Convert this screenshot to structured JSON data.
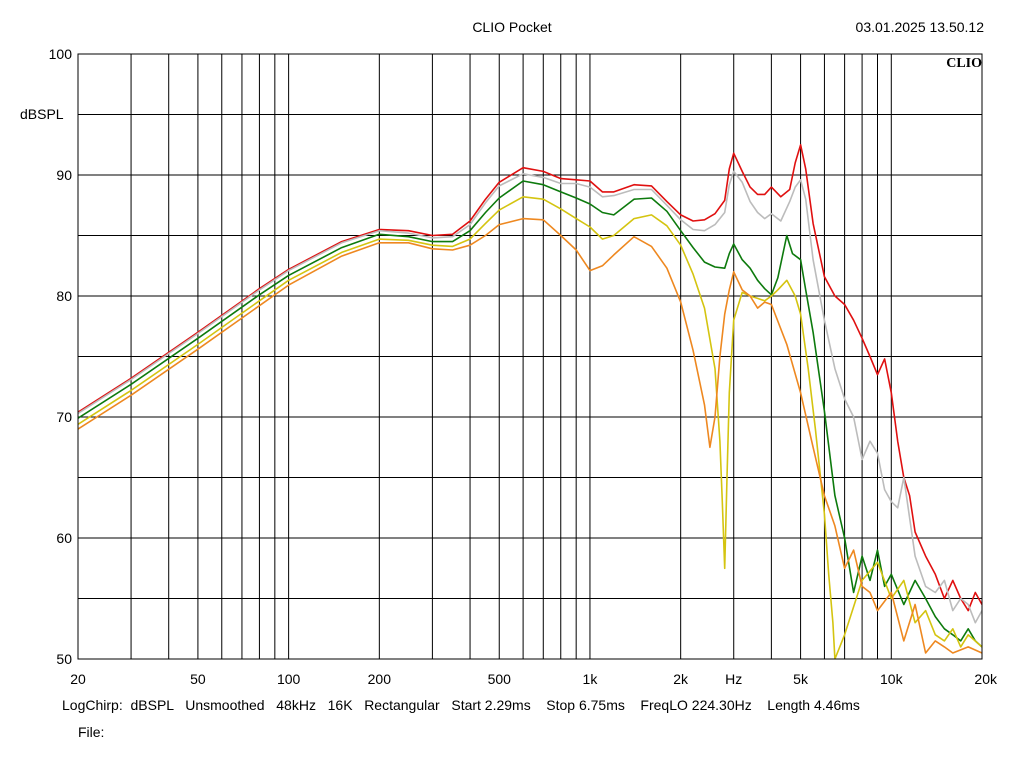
{
  "header": {
    "title": "CLIO Pocket",
    "timestamp": "03.01.2025 13.50.12"
  },
  "footer": {
    "params": "LogChirp:  dBSPL   Unsmoothed   48kHz   16K   Rectangular   Start 2.29ms    Stop 6.75ms    FreqLO 224.30Hz    Length 4.46ms",
    "file_label": "File:"
  },
  "chart_data": {
    "type": "line",
    "title": "CLIO Pocket",
    "brand": "CLIO",
    "ylabel": "dBSPL",
    "xlabel": "Hz",
    "xscale": "log",
    "xlim": [
      20,
      20000
    ],
    "ylim": [
      50,
      100
    ],
    "grid": true,
    "x_ticks": [
      {
        "value": 20,
        "label": "20"
      },
      {
        "value": 50,
        "label": "50"
      },
      {
        "value": 100,
        "label": "100"
      },
      {
        "value": 200,
        "label": "200"
      },
      {
        "value": 500,
        "label": "500"
      },
      {
        "value": 1000,
        "label": "1k"
      },
      {
        "value": 2000,
        "label": "2k"
      },
      {
        "value": 3000,
        "label": "Hz"
      },
      {
        "value": 5000,
        "label": "5k"
      },
      {
        "value": 10000,
        "label": "10k"
      },
      {
        "value": 20000,
        "label": "20k"
      }
    ],
    "y_ticks": [
      {
        "value": 100,
        "label": "100"
      },
      {
        "value": 90,
        "label": "90"
      },
      {
        "value": 80,
        "label": "80"
      },
      {
        "value": 70,
        "label": "70"
      },
      {
        "value": 60,
        "label": "60"
      },
      {
        "value": 50,
        "label": "50"
      }
    ],
    "series": [
      {
        "color": "#e01010",
        "points": [
          [
            20,
            70.4
          ],
          [
            30,
            73.2
          ],
          [
            50,
            77.0
          ],
          [
            80,
            80.6
          ],
          [
            100,
            82.2
          ],
          [
            150,
            84.5
          ],
          [
            200,
            85.5
          ],
          [
            250,
            85.4
          ],
          [
            300,
            85.0
          ],
          [
            350,
            85.1
          ],
          [
            400,
            86.2
          ],
          [
            450,
            88.0
          ],
          [
            500,
            89.4
          ],
          [
            600,
            90.6
          ],
          [
            700,
            90.3
          ],
          [
            800,
            89.7
          ],
          [
            900,
            89.6
          ],
          [
            1000,
            89.5
          ],
          [
            1100,
            88.6
          ],
          [
            1200,
            88.6
          ],
          [
            1400,
            89.2
          ],
          [
            1600,
            89.1
          ],
          [
            1800,
            87.8
          ],
          [
            2000,
            86.7
          ],
          [
            2200,
            86.2
          ],
          [
            2400,
            86.3
          ],
          [
            2600,
            86.8
          ],
          [
            2800,
            87.9
          ],
          [
            2900,
            90.5
          ],
          [
            3000,
            91.8
          ],
          [
            3200,
            90.3
          ],
          [
            3400,
            89.0
          ],
          [
            3600,
            88.4
          ],
          [
            3800,
            88.4
          ],
          [
            4000,
            89.0
          ],
          [
            4300,
            88.2
          ],
          [
            4600,
            88.8
          ],
          [
            4800,
            91.0
          ],
          [
            5000,
            92.5
          ],
          [
            5200,
            90.5
          ],
          [
            5500,
            86.0
          ],
          [
            6000,
            81.6
          ],
          [
            6500,
            80.0
          ],
          [
            7000,
            79.3
          ],
          [
            7500,
            78.0
          ],
          [
            8000,
            76.5
          ],
          [
            8500,
            75.0
          ],
          [
            9000,
            73.5
          ],
          [
            9500,
            74.8
          ],
          [
            10000,
            72.0
          ],
          [
            10500,
            68.0
          ],
          [
            11000,
            65.0
          ],
          [
            11500,
            63.5
          ],
          [
            12000,
            60.5
          ],
          [
            13000,
            58.5
          ],
          [
            14000,
            57.0
          ],
          [
            15000,
            55.0
          ],
          [
            16000,
            56.5
          ],
          [
            17000,
            55.0
          ],
          [
            18000,
            54.0
          ],
          [
            19000,
            55.5
          ],
          [
            20000,
            54.5
          ]
        ]
      },
      {
        "color": "#bcbcbc",
        "points": [
          [
            20,
            70.3
          ],
          [
            30,
            73.1
          ],
          [
            50,
            76.9
          ],
          [
            80,
            80.5
          ],
          [
            100,
            82.1
          ],
          [
            150,
            84.4
          ],
          [
            200,
            85.4
          ],
          [
            250,
            85.2
          ],
          [
            300,
            84.8
          ],
          [
            350,
            84.9
          ],
          [
            400,
            85.9
          ],
          [
            450,
            87.7
          ],
          [
            500,
            89.1
          ],
          [
            600,
            90.1
          ],
          [
            700,
            89.8
          ],
          [
            800,
            89.3
          ],
          [
            900,
            89.3
          ],
          [
            1000,
            89.0
          ],
          [
            1100,
            88.2
          ],
          [
            1200,
            88.3
          ],
          [
            1400,
            88.8
          ],
          [
            1600,
            88.8
          ],
          [
            1800,
            87.5
          ],
          [
            2000,
            86.3
          ],
          [
            2200,
            85.5
          ],
          [
            2400,
            85.4
          ],
          [
            2600,
            85.9
          ],
          [
            2800,
            86.9
          ],
          [
            2900,
            89.2
          ],
          [
            3000,
            90.3
          ],
          [
            3200,
            89.4
          ],
          [
            3400,
            87.8
          ],
          [
            3600,
            86.9
          ],
          [
            3800,
            86.4
          ],
          [
            4000,
            86.8
          ],
          [
            4300,
            86.2
          ],
          [
            4600,
            87.8
          ],
          [
            4800,
            89.0
          ],
          [
            5000,
            89.6
          ],
          [
            5200,
            88.0
          ],
          [
            5500,
            83.0
          ],
          [
            6000,
            78.0
          ],
          [
            6500,
            74.0
          ],
          [
            7000,
            71.5
          ],
          [
            7500,
            70.0
          ],
          [
            8000,
            66.5
          ],
          [
            8500,
            68.0
          ],
          [
            9000,
            67.0
          ],
          [
            9500,
            64.0
          ],
          [
            10000,
            63.0
          ],
          [
            10500,
            62.5
          ],
          [
            11000,
            65.0
          ],
          [
            12000,
            58.5
          ],
          [
            13000,
            56.0
          ],
          [
            14000,
            55.5
          ],
          [
            15000,
            56.5
          ],
          [
            16000,
            54.0
          ],
          [
            17000,
            55.0
          ],
          [
            18000,
            54.5
          ],
          [
            19000,
            53.0
          ],
          [
            20000,
            54.0
          ]
        ]
      },
      {
        "color": "#0d7a0d",
        "points": [
          [
            20,
            69.9
          ],
          [
            30,
            72.7
          ],
          [
            50,
            76.5
          ],
          [
            80,
            80.1
          ],
          [
            100,
            81.7
          ],
          [
            150,
            84.0
          ],
          [
            200,
            85.1
          ],
          [
            250,
            84.9
          ],
          [
            300,
            84.5
          ],
          [
            350,
            84.5
          ],
          [
            400,
            85.4
          ],
          [
            450,
            86.9
          ],
          [
            500,
            88.1
          ],
          [
            600,
            89.5
          ],
          [
            700,
            89.2
          ],
          [
            800,
            88.6
          ],
          [
            900,
            88.1
          ],
          [
            1000,
            87.6
          ],
          [
            1100,
            86.9
          ],
          [
            1200,
            86.7
          ],
          [
            1400,
            88.0
          ],
          [
            1600,
            88.1
          ],
          [
            1800,
            87.0
          ],
          [
            2000,
            85.4
          ],
          [
            2200,
            84.0
          ],
          [
            2400,
            82.8
          ],
          [
            2600,
            82.4
          ],
          [
            2800,
            82.3
          ],
          [
            2900,
            83.5
          ],
          [
            3000,
            84.3
          ],
          [
            3200,
            83.0
          ],
          [
            3400,
            82.3
          ],
          [
            3600,
            81.3
          ],
          [
            3800,
            80.6
          ],
          [
            4000,
            80.1
          ],
          [
            4200,
            81.5
          ],
          [
            4500,
            85.0
          ],
          [
            4700,
            83.5
          ],
          [
            5000,
            83.0
          ],
          [
            5200,
            80.5
          ],
          [
            5500,
            77.0
          ],
          [
            6000,
            70.5
          ],
          [
            6500,
            63.5
          ],
          [
            7000,
            60.0
          ],
          [
            7500,
            55.5
          ],
          [
            8000,
            58.5
          ],
          [
            8500,
            56.5
          ],
          [
            9000,
            59.0
          ],
          [
            9500,
            56.0
          ],
          [
            10000,
            57.0
          ],
          [
            11000,
            54.5
          ],
          [
            12000,
            56.5
          ],
          [
            13000,
            55.0
          ],
          [
            14000,
            53.5
          ],
          [
            15000,
            52.5
          ],
          [
            16000,
            52.0
          ],
          [
            17000,
            51.5
          ],
          [
            18000,
            52.5
          ],
          [
            19000,
            51.5
          ],
          [
            20000,
            51.0
          ]
        ]
      },
      {
        "color": "#d4c410",
        "points": [
          [
            20,
            69.4
          ],
          [
            30,
            72.2
          ],
          [
            50,
            76.0
          ],
          [
            80,
            79.6
          ],
          [
            100,
            81.3
          ],
          [
            150,
            83.6
          ],
          [
            200,
            84.7
          ],
          [
            250,
            84.6
          ],
          [
            300,
            84.2
          ],
          [
            350,
            84.1
          ],
          [
            400,
            84.7
          ],
          [
            450,
            86.0
          ],
          [
            500,
            87.1
          ],
          [
            600,
            88.2
          ],
          [
            700,
            88.0
          ],
          [
            800,
            87.2
          ],
          [
            900,
            86.4
          ],
          [
            1000,
            85.7
          ],
          [
            1100,
            84.7
          ],
          [
            1200,
            85.0
          ],
          [
            1400,
            86.4
          ],
          [
            1600,
            86.7
          ],
          [
            1800,
            85.8
          ],
          [
            2000,
            84.2
          ],
          [
            2200,
            81.8
          ],
          [
            2400,
            79.0
          ],
          [
            2600,
            74.0
          ],
          [
            2700,
            68.0
          ],
          [
            2750,
            63.0
          ],
          [
            2800,
            57.5
          ],
          [
            2850,
            65.0
          ],
          [
            2900,
            72.0
          ],
          [
            3000,
            78.0
          ],
          [
            3200,
            80.3
          ],
          [
            3400,
            80.0
          ],
          [
            3600,
            79.8
          ],
          [
            3800,
            79.6
          ],
          [
            4000,
            80.0
          ],
          [
            4200,
            80.5
          ],
          [
            4500,
            81.3
          ],
          [
            4800,
            80.0
          ],
          [
            5000,
            78.5
          ],
          [
            5300,
            74.0
          ],
          [
            5600,
            69.0
          ],
          [
            6000,
            62.0
          ],
          [
            6200,
            57.0
          ],
          [
            6400,
            53.0
          ],
          [
            6500,
            50.0
          ],
          [
            7000,
            52.0
          ],
          [
            8000,
            56.5
          ],
          [
            9000,
            58.0
          ],
          [
            10000,
            55.0
          ],
          [
            11000,
            56.5
          ],
          [
            12000,
            53.0
          ],
          [
            13000,
            54.0
          ],
          [
            14000,
            52.0
          ],
          [
            15000,
            51.5
          ],
          [
            16000,
            52.5
          ],
          [
            17000,
            51.0
          ],
          [
            18000,
            52.0
          ],
          [
            20000,
            51.0
          ]
        ]
      },
      {
        "color": "#ee8820",
        "points": [
          [
            20,
            69.0
          ],
          [
            30,
            71.8
          ],
          [
            50,
            75.6
          ],
          [
            80,
            79.2
          ],
          [
            100,
            80.9
          ],
          [
            150,
            83.3
          ],
          [
            200,
            84.4
          ],
          [
            250,
            84.4
          ],
          [
            300,
            83.9
          ],
          [
            350,
            83.8
          ],
          [
            400,
            84.2
          ],
          [
            450,
            85.0
          ],
          [
            500,
            85.9
          ],
          [
            600,
            86.4
          ],
          [
            700,
            86.3
          ],
          [
            800,
            85.0
          ],
          [
            900,
            83.8
          ],
          [
            1000,
            82.1
          ],
          [
            1100,
            82.5
          ],
          [
            1200,
            83.4
          ],
          [
            1400,
            84.9
          ],
          [
            1600,
            84.1
          ],
          [
            1800,
            82.3
          ],
          [
            2000,
            79.5
          ],
          [
            2200,
            75.5
          ],
          [
            2400,
            71.0
          ],
          [
            2500,
            67.5
          ],
          [
            2600,
            70.0
          ],
          [
            2700,
            75.0
          ],
          [
            2800,
            78.5
          ],
          [
            2900,
            80.5
          ],
          [
            3000,
            82.0
          ],
          [
            3200,
            80.5
          ],
          [
            3400,
            80.0
          ],
          [
            3600,
            79.0
          ],
          [
            3800,
            79.5
          ],
          [
            4000,
            79.3
          ],
          [
            4500,
            76.0
          ],
          [
            5000,
            72.0
          ],
          [
            5500,
            67.5
          ],
          [
            6000,
            63.5
          ],
          [
            6500,
            61.0
          ],
          [
            7000,
            57.5
          ],
          [
            7500,
            59.0
          ],
          [
            8000,
            56.0
          ],
          [
            8500,
            55.5
          ],
          [
            9000,
            54.0
          ],
          [
            10000,
            55.5
          ],
          [
            11000,
            51.5
          ],
          [
            12000,
            54.5
          ],
          [
            13000,
            50.5
          ],
          [
            14000,
            51.5
          ],
          [
            15000,
            51.0
          ],
          [
            16000,
            50.5
          ],
          [
            18000,
            51.0
          ],
          [
            20000,
            50.5
          ]
        ]
      }
    ]
  }
}
